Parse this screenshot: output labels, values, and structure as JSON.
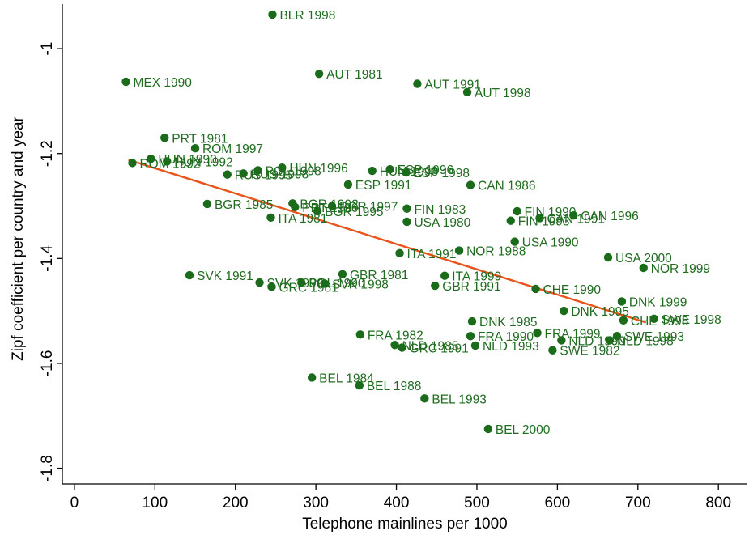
{
  "chart_data": {
    "type": "scatter",
    "xlabel": "Telephone mainlines per 1000",
    "ylabel": "Zipf coefficient per country and year",
    "xlim": [
      -15,
      835
    ],
    "ylim": [
      -1.83,
      -0.915
    ],
    "xticks": [
      0,
      100,
      200,
      300,
      400,
      500,
      600,
      700,
      800
    ],
    "xtick_labels": [
      "0",
      "100",
      "200",
      "300",
      "400",
      "500",
      "600",
      "700",
      "800"
    ],
    "yticks": [
      -1.8,
      -1.6,
      -1.4,
      -1.2,
      -1.0
    ],
    "ytick_labels": [
      "-1.8",
      "-1.6",
      "-1.4",
      "-1.2",
      "-1"
    ],
    "grid": false,
    "legend": "none",
    "colors": {
      "points": "#1a6b1a",
      "labels": "#1f6b1f",
      "fit_line": "#e8541a"
    },
    "fit_line": {
      "x": [
        67,
        710
      ],
      "y": [
        -1.212,
        -1.522
      ]
    },
    "points": [
      {
        "label": "BLR 1998",
        "x": 246,
        "y": -0.935
      },
      {
        "label": "MEX 1990",
        "x": 64,
        "y": -1.063
      },
      {
        "label": "AUT 1981",
        "x": 304,
        "y": -1.048
      },
      {
        "label": "AUT 1991",
        "x": 426,
        "y": -1.067
      },
      {
        "label": "AUT 1998",
        "x": 488,
        "y": -1.083
      },
      {
        "label": "PRT 1981",
        "x": 112,
        "y": -1.17
      },
      {
        "label": "ROM 1997",
        "x": 150,
        "y": -1.19
      },
      {
        "label": "HUN 1990",
        "x": 95,
        "y": -1.21
      },
      {
        "label": "HUN 1992",
        "x": 115,
        "y": -1.215
      },
      {
        "label": "ROM 1992",
        "x": 72,
        "y": -1.218
      },
      {
        "label": "RUS 1995",
        "x": 190,
        "y": -1.24
      },
      {
        "label": "POL 1998",
        "x": 228,
        "y": -1.232
      },
      {
        "label": "RUS 1998",
        "x": 210,
        "y": -1.238
      },
      {
        "label": "HUN 1996",
        "x": 258,
        "y": -1.227
      },
      {
        "label": "HUN 1998",
        "x": 370,
        "y": -1.233
      },
      {
        "label": "ESP 1996",
        "x": 392,
        "y": -1.23
      },
      {
        "label": "ESP 1998",
        "x": 412,
        "y": -1.236
      },
      {
        "label": "ESP 1991",
        "x": 340,
        "y": -1.259
      },
      {
        "label": "CAN 1986",
        "x": 492,
        "y": -1.26
      },
      {
        "label": "BGR 1985",
        "x": 165,
        "y": -1.296
      },
      {
        "label": "BGR 1992",
        "x": 271,
        "y": -1.295
      },
      {
        "label": "BGR 1997",
        "x": 320,
        "y": -1.3
      },
      {
        "label": "PRT 1990",
        "x": 274,
        "y": -1.302
      },
      {
        "label": "BGR 1995",
        "x": 302,
        "y": -1.31
      },
      {
        "label": "FIN 1983",
        "x": 413,
        "y": -1.305
      },
      {
        "label": "ITA 1981",
        "x": 244,
        "y": -1.322
      },
      {
        "label": "USA 1980",
        "x": 413,
        "y": -1.33
      },
      {
        "label": "FIN 1990",
        "x": 550,
        "y": -1.31
      },
      {
        "label": "CAN 1991",
        "x": 578,
        "y": -1.323
      },
      {
        "label": "CAN 1996",
        "x": 620,
        "y": -1.318
      },
      {
        "label": "FIN 1993",
        "x": 542,
        "y": -1.328
      },
      {
        "label": "USA 1990",
        "x": 547,
        "y": -1.368
      },
      {
        "label": "NOR 1988",
        "x": 478,
        "y": -1.385
      },
      {
        "label": "ITA 1991",
        "x": 404,
        "y": -1.39
      },
      {
        "label": "USA 2000",
        "x": 663,
        "y": -1.398
      },
      {
        "label": "NOR 1999",
        "x": 707,
        "y": -1.418
      },
      {
        "label": "SVK 1991",
        "x": 143,
        "y": -1.432
      },
      {
        "label": "GBR 1981",
        "x": 333,
        "y": -1.43
      },
      {
        "label": "ITA 1999",
        "x": 460,
        "y": -1.433
      },
      {
        "label": "SVK 1996",
        "x": 230,
        "y": -1.446
      },
      {
        "label": "POL 1990",
        "x": 282,
        "y": -1.446
      },
      {
        "label": "SVK 1998",
        "x": 311,
        "y": -1.448
      },
      {
        "label": "GRC 1981",
        "x": 245,
        "y": -1.454
      },
      {
        "label": "GBR 1991",
        "x": 448,
        "y": -1.452
      },
      {
        "label": "CHE 1990",
        "x": 573,
        "y": -1.458
      },
      {
        "label": "DNK 1999",
        "x": 680,
        "y": -1.482
      },
      {
        "label": "DNK 1995",
        "x": 608,
        "y": -1.5
      },
      {
        "label": "CHE 1998",
        "x": 682,
        "y": -1.518
      },
      {
        "label": "SWE 1998",
        "x": 720,
        "y": -1.515
      },
      {
        "label": "DNK 1985",
        "x": 494,
        "y": -1.52
      },
      {
        "label": "FRA 1982",
        "x": 355,
        "y": -1.545
      },
      {
        "label": "FRA 1999",
        "x": 575,
        "y": -1.542
      },
      {
        "label": "FRA 1990",
        "x": 492,
        "y": -1.548
      },
      {
        "label": "SWE 1993",
        "x": 674,
        "y": -1.548
      },
      {
        "label": "NLD 1990",
        "x": 605,
        "y": -1.556
      },
      {
        "label": "NLD 1998",
        "x": 665,
        "y": -1.556
      },
      {
        "label": "NLD 1985",
        "x": 398,
        "y": -1.565
      },
      {
        "label": "GRC 1991",
        "x": 407,
        "y": -1.57
      },
      {
        "label": "NLD 1993",
        "x": 498,
        "y": -1.566
      },
      {
        "label": "SWE 1982",
        "x": 594,
        "y": -1.575
      },
      {
        "label": "BEL 1984",
        "x": 295,
        "y": -1.627
      },
      {
        "label": "BEL 1988",
        "x": 354,
        "y": -1.642
      },
      {
        "label": "BEL 1993",
        "x": 435,
        "y": -1.667
      },
      {
        "label": "BEL 2000",
        "x": 514,
        "y": -1.725
      }
    ]
  }
}
